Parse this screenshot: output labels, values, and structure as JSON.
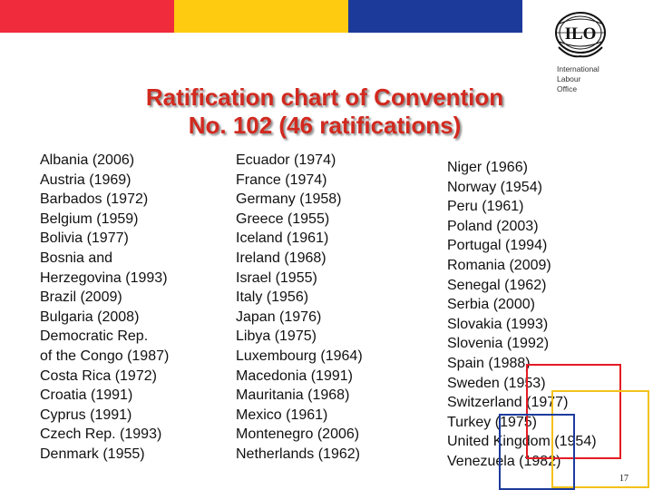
{
  "slide": {
    "title_lines": [
      "Ratification chart of Convention",
      "No. 102 (46 ratifications)"
    ],
    "organization": [
      "International",
      "Labour",
      "Office"
    ],
    "logo_text": "ILO",
    "page_number": "17"
  },
  "colors": {
    "band_red": "#ef2b3c",
    "band_yellow": "#fecb10",
    "band_blue": "#1c3a9a",
    "title_red": "#d2291f",
    "square_red": "#e31c23",
    "square_yellow": "#f3c21a",
    "square_blue": "#1e3c9c"
  },
  "columns": [
    [
      "Albania (2006)",
      "Austria (1969)",
      "Barbados (1972)",
      "Belgium (1959)",
      "Bolivia (1977)",
      "Bosnia and",
      "Herzegovina (1993)",
      "Brazil (2009)",
      "Bulgaria (2008)",
      "Democratic Rep.",
      "of the Congo (1987)",
      "Costa Rica (1972)",
      "Croatia (1991)",
      "Cyprus (1991)",
      "Czech Rep. (1993)",
      "Denmark (1955)"
    ],
    [
      "Ecuador (1974)",
      "France (1974)",
      "Germany (1958)",
      "Greece (1955)",
      "Iceland (1961)",
      "Ireland (1968)",
      "Israel (1955)",
      "Italy (1956)",
      "Japan (1976)",
      "Libya (1975)",
      "Luxembourg (1964)",
      "Macedonia (1991)",
      "Mauritania (1968)",
      "Mexico (1961)",
      "Montenegro (2006)",
      "Netherlands (1962)"
    ],
    [
      "Niger (1966)",
      "Norway (1954)",
      "Peru (1961)",
      "Poland (2003)",
      "Portugal (1994)",
      "Romania (2009)",
      "Senegal (1962)",
      "Serbia (2000)",
      "Slovakia (1993)",
      "Slovenia (1992)",
      "Spain (1988)",
      "Sweden (1953)",
      "Switzerland (1977)",
      "Turkey (1975)",
      "United Kingdom (1954)",
      "Venezuela (1982)"
    ]
  ]
}
